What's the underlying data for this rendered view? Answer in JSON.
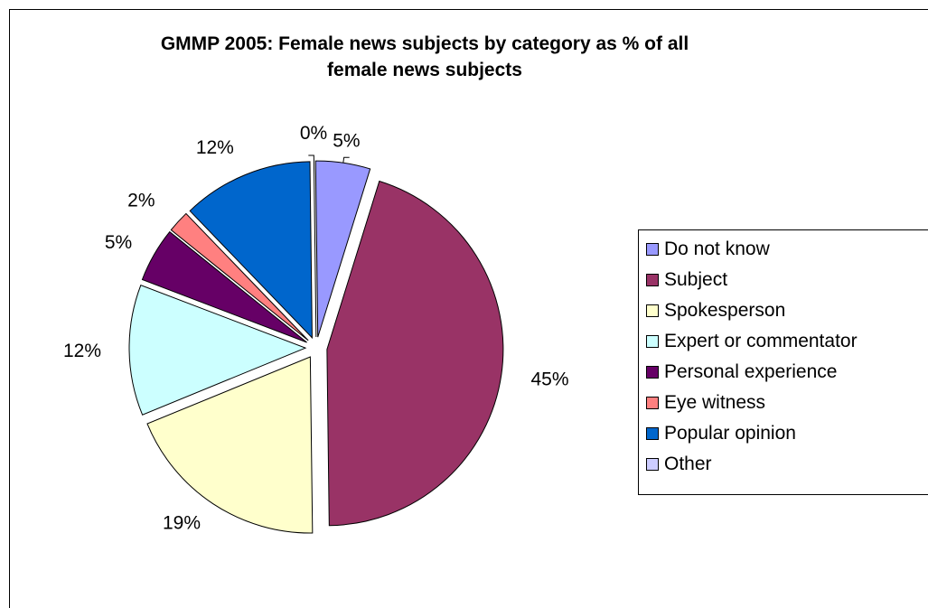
{
  "chart_data": {
    "type": "pie",
    "title": "GMMP 2005: Female news subjects by category as % of all female news subjects",
    "title_lines": [
      "GMMP 2005: Female news subjects by category as % of all",
      "female news subjects"
    ],
    "legend_position": "right",
    "exploded": true,
    "categories": [
      "Do not know",
      "Subject",
      "Spokesperson",
      "Expert or commentator",
      "Personal experience",
      "Eye witness",
      "Popular opinion",
      "Other"
    ],
    "values": [
      5,
      45,
      19,
      12,
      5,
      2,
      12,
      0
    ],
    "labels": [
      "5%",
      "45%",
      "19%",
      "12%",
      "5%",
      "2%",
      "12%",
      "0%"
    ],
    "colors": [
      "#9999ff",
      "#993366",
      "#ffffcc",
      "#ccffff",
      "#660066",
      "#ff8080",
      "#0066cc",
      "#ccccff"
    ]
  }
}
